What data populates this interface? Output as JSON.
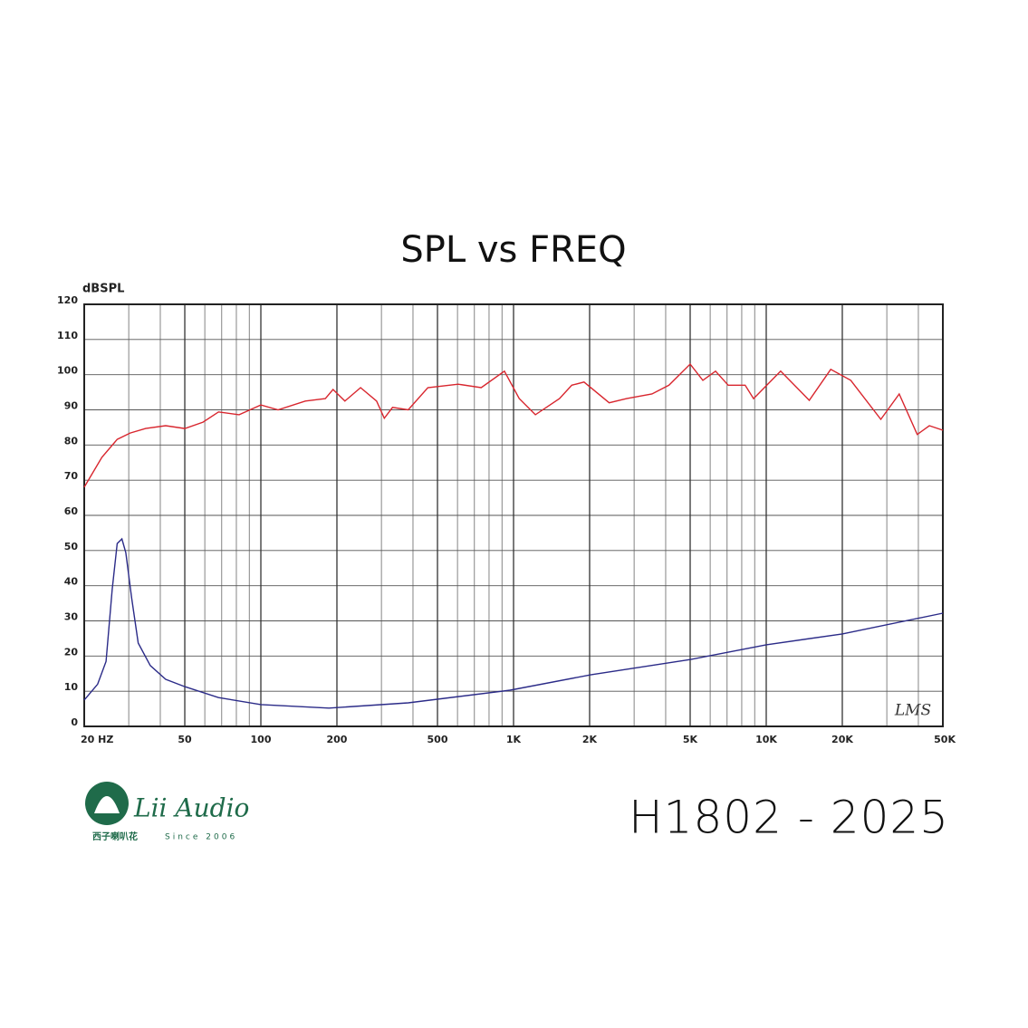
{
  "chart_data": {
    "type": "line",
    "title": "SPL vs FREQ",
    "y_label": "dBSPL",
    "log_x": true,
    "grid": true,
    "xlim": [
      20,
      50000
    ],
    "ylim": [
      0,
      120
    ],
    "xticks": [
      {
        "value": 20,
        "label": "20 HZ"
      },
      50,
      100,
      200,
      500,
      {
        "value": 1000,
        "label": "1K"
      },
      {
        "value": 2000,
        "label": "2K"
      },
      {
        "value": 5000,
        "label": "5K"
      },
      {
        "value": 10000,
        "label": "10K"
      },
      {
        "value": 20000,
        "label": "20K"
      },
      {
        "value": 50000,
        "label": "50K"
      }
    ],
    "xminorticks": [
      30,
      40,
      60,
      70,
      80,
      90,
      300,
      400,
      600,
      700,
      800,
      900,
      3000,
      4000,
      6000,
      7000,
      8000,
      9000,
      30000,
      40000
    ],
    "yticks": [
      0,
      10,
      20,
      30,
      40,
      50,
      60,
      70,
      80,
      90,
      100,
      110,
      120
    ],
    "annotation": "LMS",
    "series": [
      {
        "color": "#d8262e",
        "x": [
          20,
          23.5,
          27,
          30.4,
          35,
          42,
          50,
          59,
          68,
          82,
          100,
          117,
          150,
          180,
          193,
          215,
          248,
          287,
          308,
          332,
          383,
          458,
          604,
          745,
          920,
          1053,
          1220,
          1520,
          1700,
          1900,
          2390,
          2800,
          3530,
          4120,
          5000,
          5610,
          6300,
          7070,
          8250,
          8910,
          11400,
          14800,
          18000,
          21600,
          28400,
          33600,
          39600,
          44200,
          50000
        ],
        "values": [
          68,
          76.5,
          81.6,
          83.4,
          84.7,
          85.5,
          84.7,
          86.5,
          89.4,
          88.6,
          91.4,
          90,
          92.5,
          93.2,
          95.8,
          92.5,
          96.3,
          92.5,
          87.6,
          90.7,
          90,
          96.3,
          97.3,
          96.3,
          101,
          93.2,
          88.6,
          93.2,
          97,
          97.9,
          92,
          93.2,
          94.5,
          97,
          103,
          98.4,
          101,
          97,
          97,
          93.2,
          101,
          92.7,
          101.5,
          98.4,
          87.3,
          94.5,
          83,
          85.5,
          84.2
        ]
      },
      {
        "color": "#2b2b88",
        "x": [
          20,
          22.6,
          24.4,
          25.8,
          27,
          28.2,
          29.2,
          30.8,
          32.7,
          36.5,
          42,
          50,
          68,
          100,
          186,
          383,
          970,
          2030,
          5000,
          10000,
          20000,
          50000
        ],
        "values": [
          7.5,
          12,
          18.5,
          39,
          52,
          53.3,
          49.4,
          36.6,
          23.7,
          17.3,
          13.4,
          11.3,
          8.2,
          6.2,
          5.2,
          6.7,
          10.3,
          14.7,
          19,
          23.2,
          26.3,
          32.2
        ]
      }
    ]
  },
  "logo": {
    "brand": "Lii Audio",
    "chinese": "西子喇叭花",
    "since": "Since 2006"
  },
  "model": "H1802 - 2025"
}
